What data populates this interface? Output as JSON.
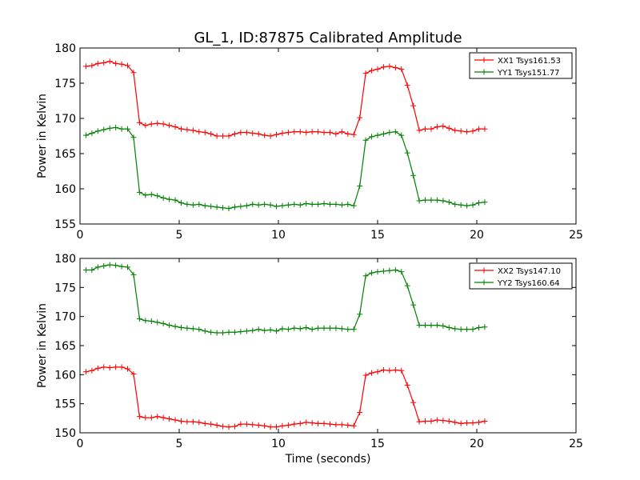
{
  "figure": {
    "title": "GL_1, ID:87875 Calibrated Amplitude"
  },
  "chart_data": [
    {
      "type": "line",
      "title": "GL_1, ID:87875 Calibrated Amplitude",
      "xlabel": "",
      "ylabel": "Power in Kelvin",
      "xlim": [
        0,
        25
      ],
      "ylim": [
        155,
        180
      ],
      "xticks": [
        0,
        5,
        10,
        15,
        20,
        25
      ],
      "yticks": [
        155,
        160,
        165,
        170,
        175,
        180
      ],
      "grid": false,
      "legend_position": "top-right",
      "series": [
        {
          "name": "XX1 Tsys161.53",
          "color": "#ff0000",
          "x": [
            0.3,
            0.6,
            0.9,
            1.2,
            1.5,
            1.8,
            2.1,
            2.4,
            2.7,
            3.0,
            3.3,
            3.6,
            3.9,
            4.2,
            4.5,
            4.8,
            5.1,
            5.4,
            5.7,
            6.0,
            6.3,
            6.6,
            6.9,
            7.2,
            7.5,
            7.8,
            8.1,
            8.4,
            8.7,
            9.0,
            9.3,
            9.6,
            9.9,
            10.2,
            10.5,
            10.8,
            11.1,
            11.4,
            11.7,
            12.0,
            12.3,
            12.6,
            12.9,
            13.2,
            13.5,
            13.8,
            14.1,
            14.4,
            14.7,
            15.0,
            15.3,
            15.6,
            15.9,
            16.2,
            16.5,
            16.8,
            17.1,
            17.4,
            17.7,
            18.0,
            18.3,
            18.6,
            18.9,
            19.2,
            19.5,
            19.8,
            20.1,
            20.4
          ],
          "y": [
            177.4,
            177.5,
            177.8,
            177.9,
            178.1,
            177.8,
            177.7,
            177.5,
            176.5,
            169.4,
            169.0,
            169.2,
            169.3,
            169.2,
            169.0,
            168.8,
            168.5,
            168.4,
            168.3,
            168.1,
            168.0,
            167.8,
            167.5,
            167.5,
            167.5,
            167.8,
            168.0,
            168.0,
            167.9,
            167.8,
            167.6,
            167.5,
            167.7,
            167.9,
            168.0,
            168.1,
            168.1,
            168.0,
            168.1,
            168.1,
            168.0,
            168.0,
            167.8,
            168.1,
            167.8,
            167.7,
            170.1,
            176.4,
            176.8,
            177.0,
            177.3,
            177.4,
            177.2,
            177.0,
            174.7,
            171.8,
            168.3,
            168.5,
            168.5,
            168.8,
            168.9,
            168.6,
            168.3,
            168.2,
            168.1,
            168.2,
            168.5,
            168.5
          ]
        },
        {
          "name": "YY1 Tsys151.77",
          "color": "#008000",
          "x": [
            0.3,
            0.6,
            0.9,
            1.2,
            1.5,
            1.8,
            2.1,
            2.4,
            2.7,
            3.0,
            3.3,
            3.6,
            3.9,
            4.2,
            4.5,
            4.8,
            5.1,
            5.4,
            5.7,
            6.0,
            6.3,
            6.6,
            6.9,
            7.2,
            7.5,
            7.8,
            8.1,
            8.4,
            8.7,
            9.0,
            9.3,
            9.6,
            9.9,
            10.2,
            10.5,
            10.8,
            11.1,
            11.4,
            11.7,
            12.0,
            12.3,
            12.6,
            12.9,
            13.2,
            13.5,
            13.8,
            14.1,
            14.4,
            14.7,
            15.0,
            15.3,
            15.6,
            15.9,
            16.2,
            16.5,
            16.8,
            17.1,
            17.4,
            17.7,
            18.0,
            18.3,
            18.6,
            18.9,
            19.2,
            19.5,
            19.8,
            20.1,
            20.4
          ],
          "y": [
            167.6,
            167.9,
            168.2,
            168.4,
            168.6,
            168.7,
            168.5,
            168.5,
            167.3,
            159.5,
            159.1,
            159.2,
            159.0,
            158.7,
            158.5,
            158.4,
            158.0,
            157.8,
            157.7,
            157.8,
            157.6,
            157.5,
            157.4,
            157.3,
            157.2,
            157.4,
            157.5,
            157.6,
            157.8,
            157.7,
            157.8,
            157.7,
            157.5,
            157.6,
            157.7,
            157.8,
            157.7,
            157.9,
            157.8,
            157.8,
            157.9,
            157.8,
            157.8,
            157.7,
            157.8,
            157.6,
            160.4,
            166.9,
            167.4,
            167.6,
            167.8,
            168.0,
            168.1,
            167.6,
            165.1,
            161.9,
            158.3,
            158.4,
            158.4,
            158.4,
            158.3,
            158.1,
            157.8,
            157.7,
            157.6,
            157.7,
            158.0,
            158.1
          ]
        }
      ]
    },
    {
      "type": "line",
      "title": "",
      "xlabel": "Time (seconds)",
      "ylabel": "Power in Kelvin",
      "xlim": [
        0,
        25
      ],
      "ylim": [
        150,
        180
      ],
      "xticks": [
        0,
        5,
        10,
        15,
        20,
        25
      ],
      "yticks": [
        150,
        155,
        160,
        165,
        170,
        175,
        180
      ],
      "grid": false,
      "legend_position": "top-right",
      "series": [
        {
          "name": "XX2 Tsys147.10",
          "color": "#ff0000",
          "x": [
            0.3,
            0.6,
            0.9,
            1.2,
            1.5,
            1.8,
            2.1,
            2.4,
            2.7,
            3.0,
            3.3,
            3.6,
            3.9,
            4.2,
            4.5,
            4.8,
            5.1,
            5.4,
            5.7,
            6.0,
            6.3,
            6.6,
            6.9,
            7.2,
            7.5,
            7.8,
            8.1,
            8.4,
            8.7,
            9.0,
            9.3,
            9.6,
            9.9,
            10.2,
            10.5,
            10.8,
            11.1,
            11.4,
            11.7,
            12.0,
            12.3,
            12.6,
            12.9,
            13.2,
            13.5,
            13.8,
            14.1,
            14.4,
            14.7,
            15.0,
            15.3,
            15.6,
            15.9,
            16.2,
            16.5,
            16.8,
            17.1,
            17.4,
            17.7,
            18.0,
            18.3,
            18.6,
            18.9,
            19.2,
            19.5,
            19.8,
            20.1,
            20.4
          ],
          "y": [
            160.5,
            160.7,
            161.1,
            161.3,
            161.2,
            161.3,
            161.3,
            161.0,
            160.1,
            152.8,
            152.6,
            152.6,
            152.8,
            152.6,
            152.4,
            152.2,
            152.0,
            151.9,
            151.9,
            151.8,
            151.6,
            151.5,
            151.3,
            151.1,
            151.0,
            151.1,
            151.5,
            151.5,
            151.4,
            151.3,
            151.2,
            151.0,
            151.0,
            151.2,
            151.3,
            151.5,
            151.6,
            151.8,
            151.7,
            151.6,
            151.6,
            151.5,
            151.4,
            151.4,
            151.3,
            151.2,
            153.5,
            159.9,
            160.3,
            160.5,
            160.8,
            160.7,
            160.8,
            160.7,
            158.2,
            155.2,
            151.9,
            152.0,
            152.0,
            152.2,
            152.1,
            152.0,
            151.8,
            151.6,
            151.7,
            151.7,
            151.8,
            152.0
          ]
        },
        {
          "name": "YY2 Tsys160.64",
          "color": "#008000",
          "x": [
            0.3,
            0.6,
            0.9,
            1.2,
            1.5,
            1.8,
            2.1,
            2.4,
            2.7,
            3.0,
            3.3,
            3.6,
            3.9,
            4.2,
            4.5,
            4.8,
            5.1,
            5.4,
            5.7,
            6.0,
            6.3,
            6.6,
            6.9,
            7.2,
            7.5,
            7.8,
            8.1,
            8.4,
            8.7,
            9.0,
            9.3,
            9.6,
            9.9,
            10.2,
            10.5,
            10.8,
            11.1,
            11.4,
            11.7,
            12.0,
            12.3,
            12.6,
            12.9,
            13.2,
            13.5,
            13.8,
            14.1,
            14.4,
            14.7,
            15.0,
            15.3,
            15.6,
            15.9,
            16.2,
            16.5,
            16.8,
            17.1,
            17.4,
            17.7,
            18.0,
            18.3,
            18.6,
            18.9,
            19.2,
            19.5,
            19.8,
            20.1,
            20.4
          ],
          "y": [
            178.0,
            178.0,
            178.5,
            178.7,
            178.9,
            178.8,
            178.6,
            178.5,
            177.2,
            169.6,
            169.3,
            169.2,
            169.0,
            168.8,
            168.5,
            168.3,
            168.1,
            168.0,
            167.9,
            167.8,
            167.5,
            167.3,
            167.2,
            167.2,
            167.3,
            167.3,
            167.4,
            167.5,
            167.6,
            167.8,
            167.6,
            167.7,
            167.5,
            167.9,
            167.8,
            168.0,
            167.9,
            168.1,
            167.8,
            168.0,
            168.0,
            168.0,
            168.0,
            167.9,
            167.8,
            167.8,
            170.4,
            177.0,
            177.5,
            177.7,
            177.8,
            177.9,
            178.0,
            177.7,
            175.3,
            172.0,
            168.5,
            168.5,
            168.5,
            168.5,
            168.4,
            168.1,
            167.9,
            167.8,
            167.8,
            167.8,
            168.1,
            168.2
          ]
        }
      ]
    }
  ]
}
